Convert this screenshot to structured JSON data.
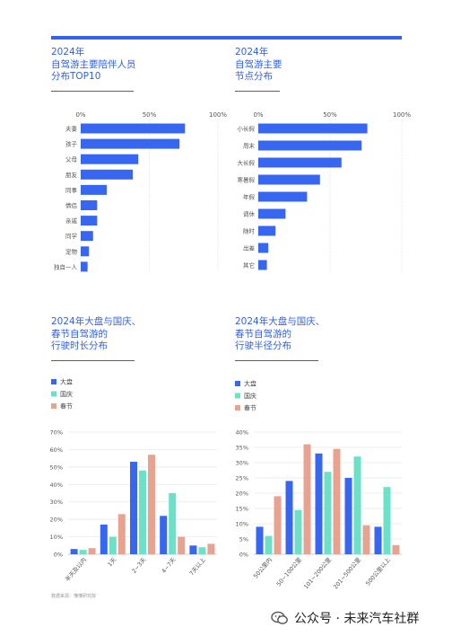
{
  "colors": {
    "blue": "#3767f0",
    "teal": "#6de0c8",
    "salmon": "#e8a290",
    "title": "#2f5fe8",
    "grid": "#e6e6e6"
  },
  "source_note": "数据来源：懂懂研究院",
  "watermark": "公众号 · 未来汽车社群",
  "chart_data": [
    {
      "type": "bar",
      "orientation": "horizontal",
      "title_lines": [
        "2024年",
        "自驾游主要陪伴人员",
        "分布TOP10"
      ],
      "categories": [
        "夫妻",
        "孩子",
        "父母",
        "朋友",
        "同事",
        "情侣",
        "亲戚",
        "同学",
        "宠物",
        "独自一人"
      ],
      "values": [
        76,
        72,
        42,
        38,
        19,
        12,
        12,
        9,
        6,
        5
      ],
      "xlim": [
        0,
        100
      ],
      "ticks": [
        "0%",
        "50%",
        "100%"
      ],
      "grid": true
    },
    {
      "type": "bar",
      "orientation": "horizontal",
      "title_lines": [
        "2024年",
        "自驾游主要",
        "节点分布"
      ],
      "categories": [
        "小长假",
        "周末",
        "大长假",
        "寒暑假",
        "年假",
        "调休",
        "随时",
        "出差",
        "其它"
      ],
      "values": [
        76,
        72,
        58,
        43,
        34,
        19,
        12,
        7,
        6
      ],
      "xlim": [
        0,
        100
      ],
      "ticks": [
        "0%",
        "50%",
        "100%"
      ],
      "grid": true
    },
    {
      "type": "bar",
      "title_lines": [
        "2024年大盘与国庆、",
        "春节自驾游的",
        "行驶时长分布"
      ],
      "categories": [
        "半天及以内",
        "1天",
        "2~3天",
        "4~7天",
        "7天以上"
      ],
      "series": [
        {
          "name": "大盘",
          "values": [
            3,
            17,
            53,
            22,
            5
          ]
        },
        {
          "name": "国庆",
          "values": [
            2.5,
            10,
            48,
            35,
            4
          ]
        },
        {
          "name": "春节",
          "values": [
            3.5,
            23,
            57,
            10,
            6
          ]
        }
      ],
      "ylim": [
        0,
        70
      ],
      "yticks": [
        "0%",
        "10%",
        "20%",
        "30%",
        "40%",
        "50%",
        "60%",
        "70%"
      ],
      "legend": "top-left",
      "grid": true
    },
    {
      "type": "bar",
      "title_lines": [
        "2024年大盘与国庆、",
        "春节自驾游的",
        "行驶半径分布"
      ],
      "categories": [
        "50公里内",
        "50~100公里",
        "101~200公里",
        "201~500公里",
        "500公里以上"
      ],
      "series": [
        {
          "name": "大盘",
          "values": [
            9,
            24,
            33,
            25,
            9
          ]
        },
        {
          "name": "国庆",
          "values": [
            6,
            14.5,
            27,
            32,
            22
          ]
        },
        {
          "name": "春节",
          "values": [
            19,
            36,
            34.5,
            9.5,
            3
          ]
        }
      ],
      "ylim": [
        0,
        40
      ],
      "yticks": [
        "0%",
        "5%",
        "10%",
        "15%",
        "20%",
        "25%",
        "30%",
        "35%",
        "40%"
      ],
      "legend": "top-left",
      "grid": true
    }
  ]
}
